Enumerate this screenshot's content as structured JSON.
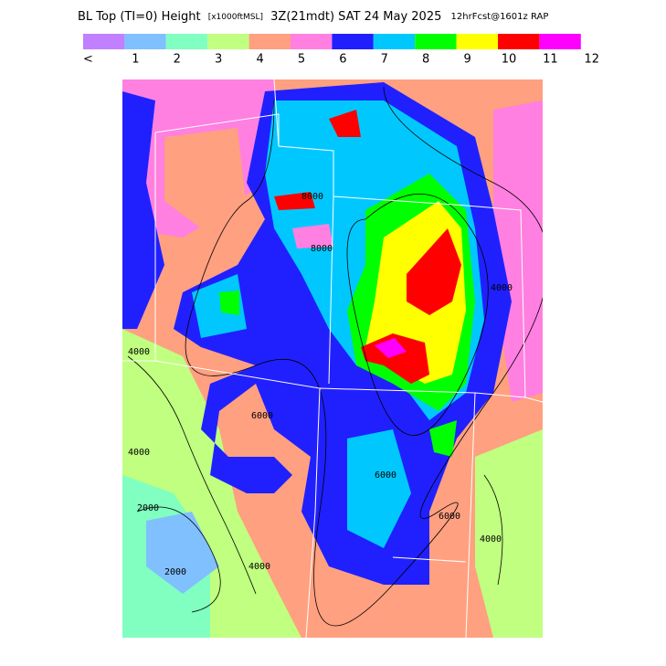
{
  "header": {
    "title_main": "BL Top (TI=0) Height",
    "title_units": "[x1000ftMSL]",
    "title_time": "3Z(21mdt) SAT 24 May 2025",
    "title_model": "12hrFcst@1601z RAP"
  },
  "legend": {
    "labels": [
      "<",
      "1",
      "2",
      "3",
      "4",
      "5",
      "6",
      "7",
      "8",
      "9",
      "10",
      "11",
      "12"
    ],
    "colors": [
      "#c080ff",
      "#80c0ff",
      "#80ffc0",
      "#c0ff80",
      "#ffa080",
      "#ff80e0",
      "#2020ff",
      "#00c8ff",
      "#00ff00",
      "#ffff00",
      "#ff0000",
      "#ff00ff"
    ]
  },
  "map": {
    "contour_labels": [
      "4000",
      "4000",
      "2000",
      "2000",
      "4000",
      "6000",
      "6000",
      "8000",
      "4000",
      "6000",
      "4000",
      "8000"
    ]
  }
}
